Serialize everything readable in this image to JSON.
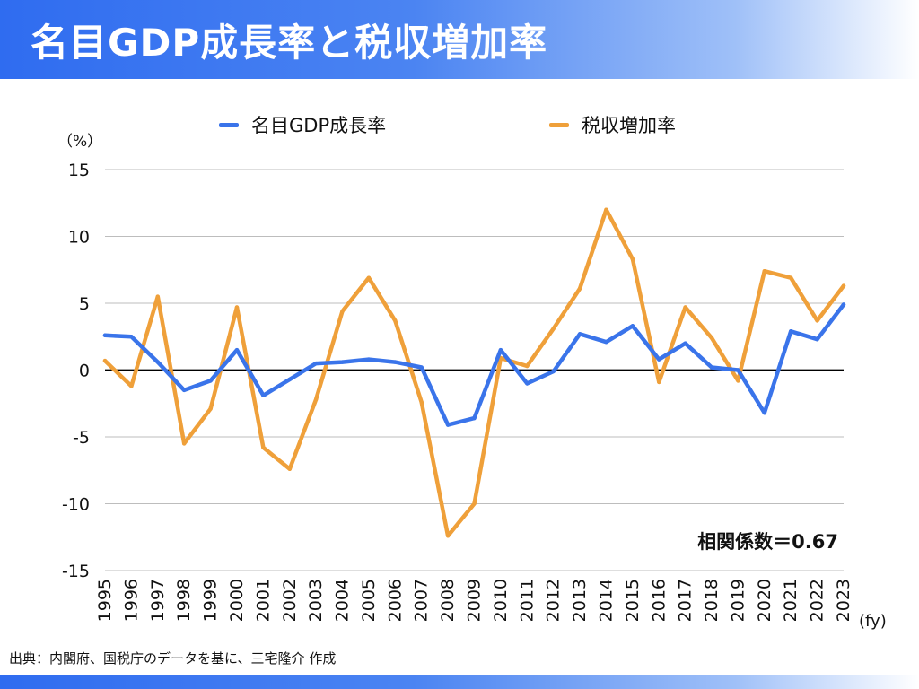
{
  "title": "名目GDP成長率と税収増加率",
  "source": "出典：内閣府、国税庁のデータを基に、三宅隆介 作成",
  "colors": {
    "gdp": "#3a74ea",
    "tax": "#efa03a",
    "accent": "#2f6cf0"
  },
  "chart_data": {
    "type": "line",
    "y_unit": "（%）",
    "x_unit": "(fy)",
    "ylim": [
      -15,
      15
    ],
    "yticks": [
      "15",
      "10",
      "5",
      "0",
      "-5",
      "-10",
      "-15"
    ],
    "x": [
      "1995",
      "1996",
      "1997",
      "1998",
      "1999",
      "2000",
      "2001",
      "2002",
      "2003",
      "2004",
      "2005",
      "2006",
      "2007",
      "2008",
      "2009",
      "2010",
      "2011",
      "2012",
      "2013",
      "2014",
      "2015",
      "2016",
      "2017",
      "2018",
      "2019",
      "2020",
      "2021",
      "2022",
      "2023"
    ],
    "series": [
      {
        "name": "名目GDP成長率",
        "values": [
          2.6,
          2.5,
          0.6,
          -1.5,
          -0.8,
          1.5,
          -1.9,
          -0.7,
          0.5,
          0.6,
          0.8,
          0.6,
          0.2,
          -4.1,
          -3.6,
          1.5,
          -1.0,
          -0.1,
          2.7,
          2.1,
          3.3,
          0.8,
          2.0,
          0.2,
          0.0,
          -3.2,
          2.9,
          2.3,
          4.9
        ]
      },
      {
        "name": "税収増加率",
        "values": [
          0.7,
          -1.2,
          5.5,
          -5.5,
          -2.9,
          4.7,
          -5.8,
          -7.4,
          -2.2,
          4.4,
          6.9,
          3.7,
          -2.4,
          -12.4,
          -10.0,
          0.9,
          0.3,
          3.1,
          6.1,
          12.0,
          8.3,
          -0.9,
          4.7,
          2.4,
          -0.8,
          7.4,
          6.9,
          3.7,
          6.3
        ]
      }
    ],
    "annotation": "相関係数＝0.67",
    "legend_position": "top",
    "grid": true
  }
}
